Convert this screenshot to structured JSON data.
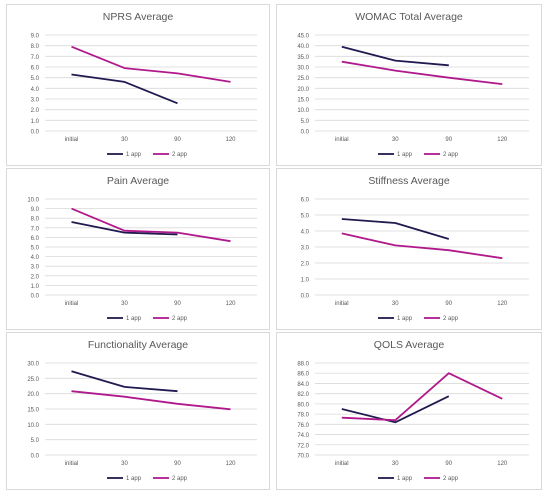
{
  "colors": {
    "series1": "#1f1a4f",
    "series2": "#b0198c",
    "grid": "#d9d9d9",
    "text": "#595959"
  },
  "chart_data": [
    {
      "type": "line",
      "title": "NPRS Average",
      "categories": [
        "initial",
        "30",
        "90",
        "120"
      ],
      "ylim": [
        0,
        9
      ],
      "yticks": [
        "0.0",
        "1.0",
        "2.0",
        "3.0",
        "4.0",
        "5.0",
        "6.0",
        "7.0",
        "8.0",
        "9.0"
      ],
      "legend_position": "bottom",
      "grid": true,
      "series": [
        {
          "name": "1 app",
          "values": [
            5.3,
            4.6,
            2.6,
            null
          ]
        },
        {
          "name": "2 app",
          "values": [
            7.9,
            5.9,
            5.4,
            4.6
          ]
        }
      ]
    },
    {
      "type": "line",
      "title": "WOMAC Total Average",
      "categories": [
        "initial",
        "30",
        "90",
        "120"
      ],
      "ylim": [
        0,
        45
      ],
      "yticks": [
        "0.0",
        "5.0",
        "10.0",
        "15.0",
        "20.0",
        "25.0",
        "30.0",
        "35.0",
        "40.0",
        "45.0"
      ],
      "legend_position": "bottom",
      "grid": true,
      "series": [
        {
          "name": "1 app",
          "values": [
            39.5,
            33.0,
            30.8,
            null
          ]
        },
        {
          "name": "2 app",
          "values": [
            32.5,
            28.3,
            25.0,
            22.0
          ]
        }
      ]
    },
    {
      "type": "line",
      "title": "Pain Average",
      "categories": [
        "initial",
        "30",
        "90",
        "120"
      ],
      "ylim": [
        0,
        10
      ],
      "yticks": [
        "0.0",
        "1.0",
        "2.0",
        "3.0",
        "4.0",
        "5.0",
        "6.0",
        "7.0",
        "8.0",
        "9.0",
        "10.0"
      ],
      "legend_position": "bottom",
      "grid": true,
      "series": [
        {
          "name": "1 app",
          "values": [
            7.6,
            6.5,
            6.3,
            null
          ]
        },
        {
          "name": "2 app",
          "values": [
            9.0,
            6.7,
            6.5,
            5.6
          ]
        }
      ]
    },
    {
      "type": "line",
      "title": "Stiffness Average",
      "categories": [
        "initial",
        "30",
        "90",
        "120"
      ],
      "ylim": [
        0,
        6
      ],
      "yticks": [
        "0.0",
        "1.0",
        "2.0",
        "3.0",
        "4.0",
        "5.0",
        "6.0"
      ],
      "legend_position": "bottom",
      "grid": true,
      "series": [
        {
          "name": "1 app",
          "values": [
            4.75,
            4.5,
            3.5,
            null
          ]
        },
        {
          "name": "2 app",
          "values": [
            3.85,
            3.1,
            2.8,
            2.3
          ]
        }
      ]
    },
    {
      "type": "line",
      "title": "Functionality Average",
      "categories": [
        "initial",
        "30",
        "90",
        "120"
      ],
      "ylim": [
        0,
        30
      ],
      "yticks": [
        "0.0",
        "5.0",
        "10.0",
        "15.0",
        "20.0",
        "25.0",
        "30.0"
      ],
      "legend_position": "bottom",
      "grid": true,
      "series": [
        {
          "name": "1 app",
          "values": [
            27.3,
            22.2,
            20.8,
            null
          ]
        },
        {
          "name": "2 app",
          "values": [
            20.8,
            19.0,
            16.7,
            14.9
          ]
        }
      ]
    },
    {
      "type": "line",
      "title": "QOLS Average",
      "categories": [
        "initial",
        "30",
        "90",
        "120"
      ],
      "ylim": [
        70,
        88
      ],
      "yticks": [
        "70.0",
        "72.0",
        "74.0",
        "76.0",
        "78.0",
        "80.0",
        "82.0",
        "84.0",
        "86.0",
        "88.0"
      ],
      "legend_position": "bottom",
      "grid": true,
      "series": [
        {
          "name": "1 app",
          "values": [
            79.0,
            76.4,
            81.5,
            null
          ]
        },
        {
          "name": "2 app",
          "values": [
            77.3,
            76.8,
            86.0,
            81.0
          ]
        }
      ]
    }
  ]
}
